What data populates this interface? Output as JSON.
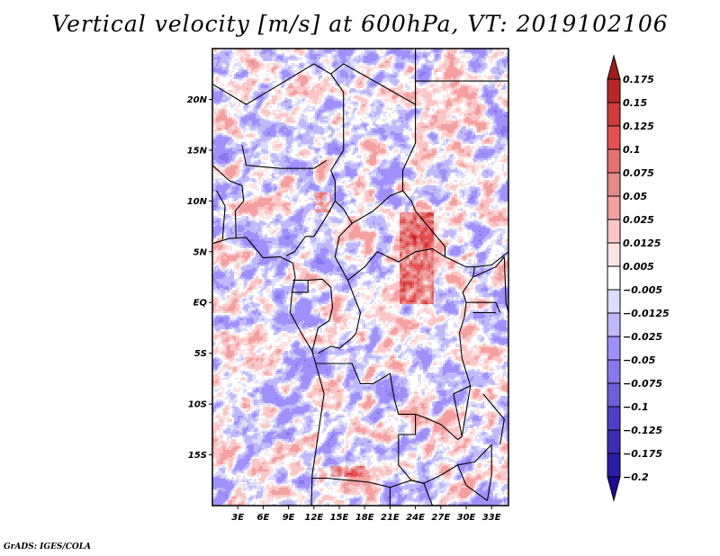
{
  "title": "Vertical velocity [m/s] at 600hPa, VT: 2019102106",
  "credit": "GrADS: IGES/COLA",
  "chart_data": {
    "type": "heatmap",
    "title": "Vertical velocity [m/s] at 600hPa, VT: 2019102106",
    "variable": "Vertical velocity",
    "units": "m/s",
    "level": "600hPa",
    "valid_time": "2019102106",
    "xlabel": "",
    "ylabel": "",
    "xlim": [
      0,
      35
    ],
    "ylim": [
      -20,
      25
    ],
    "x_ticks": [
      {
        "value": 3,
        "label": "3E"
      },
      {
        "value": 6,
        "label": "6E"
      },
      {
        "value": 9,
        "label": "9E"
      },
      {
        "value": 12,
        "label": "12E"
      },
      {
        "value": 15,
        "label": "15E"
      },
      {
        "value": 18,
        "label": "18E"
      },
      {
        "value": 21,
        "label": "21E"
      },
      {
        "value": 24,
        "label": "24E"
      },
      {
        "value": 27,
        "label": "27E"
      },
      {
        "value": 30,
        "label": "30E"
      },
      {
        "value": 33,
        "label": "33E"
      }
    ],
    "y_ticks": [
      {
        "value": 20,
        "label": "20N"
      },
      {
        "value": 15,
        "label": "15N"
      },
      {
        "value": 10,
        "label": "10N"
      },
      {
        "value": 5,
        "label": "5N"
      },
      {
        "value": 0,
        "label": "EQ"
      },
      {
        "value": -5,
        "label": "5S"
      },
      {
        "value": -10,
        "label": "10S"
      },
      {
        "value": -15,
        "label": "15S"
      }
    ],
    "colorbar": {
      "placement": "right",
      "levels": [
        0.175,
        0.15,
        0.125,
        0.1,
        0.075,
        0.05,
        0.025,
        0.0125,
        0.005,
        -0.005,
        -0.0125,
        -0.025,
        -0.05,
        -0.075,
        -0.1,
        -0.125,
        -0.175,
        -0.2
      ],
      "labels": [
        "0.175",
        "0.15",
        "0.125",
        "0.1",
        "0.075",
        "0.05",
        "0.025",
        "0.0125",
        "0.005",
        "−0.005",
        "−0.0125",
        "−0.025",
        "−0.05",
        "−0.075",
        "−0.1",
        "−0.125",
        "−0.175",
        "−0.2"
      ],
      "colors": [
        "#a01a1a",
        "#b82626",
        "#d03c3c",
        "#e65050",
        "#e87070",
        "#e48a8a",
        "#f4a0a0",
        "#fcc6c6",
        "#fde4e4",
        "#ffffff",
        "#dcdcfc",
        "#c0b8fc",
        "#a090fc",
        "#8878f0",
        "#6e5edc",
        "#4e40cc",
        "#3a2cb8",
        "#2a1ca8",
        "#1e0c98"
      ],
      "extend": "both"
    },
    "notable_features": [
      {
        "description": "strong upward motion cluster",
        "lon_range": [
          22,
          26
        ],
        "lat_range": [
          0,
          9
        ]
      },
      {
        "description": "upward motion cluster",
        "lon_range": [
          12,
          14
        ],
        "lat_range": [
          9,
          11
        ]
      },
      {
        "description": "upward band",
        "lon_range": [
          14,
          18
        ],
        "lat_range": [
          -17,
          -16
        ]
      }
    ],
    "grid": false,
    "basemap": "country boundaries (Central Africa)"
  }
}
